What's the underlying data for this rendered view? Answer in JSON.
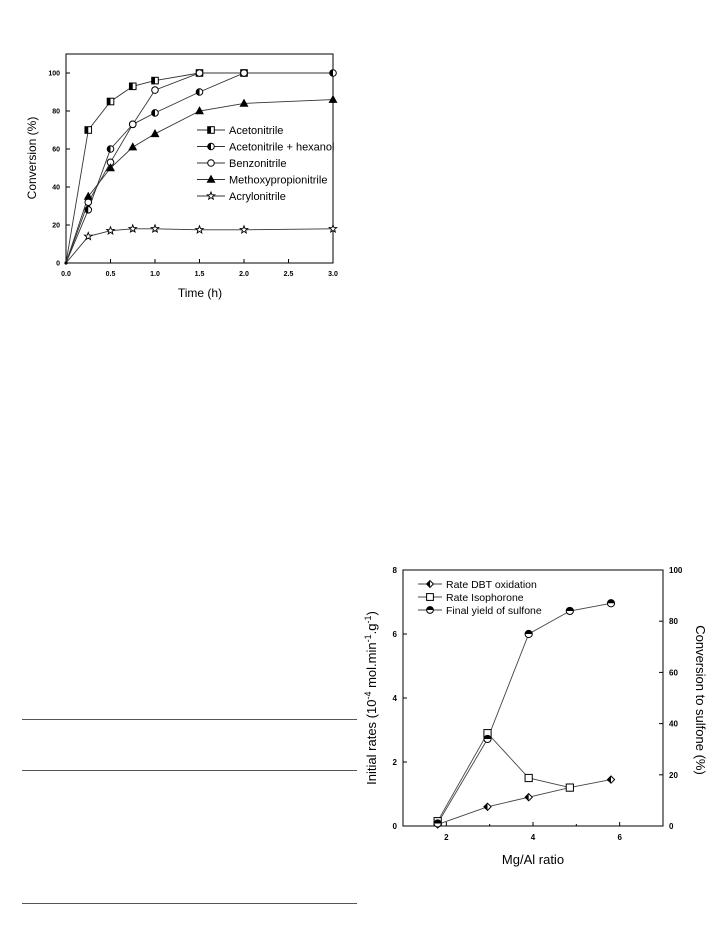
{
  "chart_data": [
    {
      "type": "line",
      "title": "",
      "xlabel": "Time (h)",
      "ylabel": "Conversion (%)",
      "xlim": [
        0,
        3.0
      ],
      "ylim": [
        0,
        110
      ],
      "xticks": [
        "0.0",
        "0.5",
        "1.0",
        "1.5",
        "2.0",
        "2.5",
        "3.0"
      ],
      "yticks": [
        "0",
        "20",
        "40",
        "60",
        "80",
        "100"
      ],
      "legend_position": "center-right",
      "series": [
        {
          "name": "Acetonitrile",
          "marker": "square-half",
          "x": [
            0,
            0.25,
            0.5,
            0.75,
            1.0,
            1.5,
            2.0
          ],
          "y": [
            0,
            70,
            85,
            93,
            96,
            100,
            100
          ]
        },
        {
          "name": "Acetonitrile + hexanol",
          "marker": "circle-half",
          "x": [
            0,
            0.25,
            0.5,
            0.75,
            1.0,
            1.5,
            2.0,
            3.0
          ],
          "y": [
            0,
            28,
            60,
            73,
            79,
            90,
            100,
            100
          ]
        },
        {
          "name": "Benzonitrile",
          "marker": "circle-open",
          "x": [
            0,
            0.25,
            0.5,
            0.75,
            1.0,
            1.5,
            2.0
          ],
          "y": [
            0,
            32,
            53,
            73,
            91,
            100,
            100
          ]
        },
        {
          "name": "Methoxypropionitrile",
          "marker": "triangle-filled",
          "x": [
            0,
            0.25,
            0.5,
            0.75,
            1.0,
            1.5,
            2.0,
            3.0
          ],
          "y": [
            0,
            35,
            50,
            61,
            68,
            80,
            84,
            86
          ]
        },
        {
          "name": "Acrylonitrile",
          "marker": "star-open",
          "x": [
            0,
            0.25,
            0.5,
            0.75,
            1.0,
            1.5,
            2.0,
            3.0
          ],
          "y": [
            0,
            14,
            17,
            18,
            18,
            17.5,
            17.5,
            18
          ]
        }
      ]
    },
    {
      "type": "line",
      "title": "",
      "xlabel": "Mg/Al ratio",
      "ylabel": "Initial rates (10-4 mol.min-1.g-1)",
      "ylabel_parts": [
        "Initial rates (10",
        "-4",
        " mol.min",
        "-1",
        ".g",
        "-1",
        ")"
      ],
      "ylabel_right": "Conversion to sulfone (%)",
      "xlim": [
        1,
        7
      ],
      "ylim": [
        0,
        8
      ],
      "ylim_right": [
        0,
        100
      ],
      "xticks": [
        "2",
        "4",
        "6"
      ],
      "yticks": [
        "0",
        "2",
        "4",
        "6",
        "8"
      ],
      "yticks_right": [
        "0",
        "20",
        "40",
        "60",
        "80",
        "100"
      ],
      "legend_position": "top-left",
      "series": [
        {
          "name": "Rate DBT oxidation",
          "axis": "left",
          "marker": "diamond-half",
          "x": [
            1.8,
            2.95,
            3.9,
            4.85,
            5.8
          ],
          "y": [
            0.05,
            0.6,
            0.9,
            1.2,
            1.45
          ]
        },
        {
          "name": "Rate Isophorone",
          "axis": "left",
          "marker": "square-open",
          "x": [
            1.8,
            2.95,
            3.9,
            4.85
          ],
          "y": [
            0.15,
            2.9,
            1.5,
            1.2
          ]
        },
        {
          "name": "Final yield of sulfone",
          "axis": "right",
          "marker": "circle-half-top",
          "x": [
            1.8,
            2.95,
            3.9,
            4.85,
            5.8
          ],
          "y": [
            1,
            34,
            75,
            84,
            87
          ]
        }
      ]
    }
  ]
}
